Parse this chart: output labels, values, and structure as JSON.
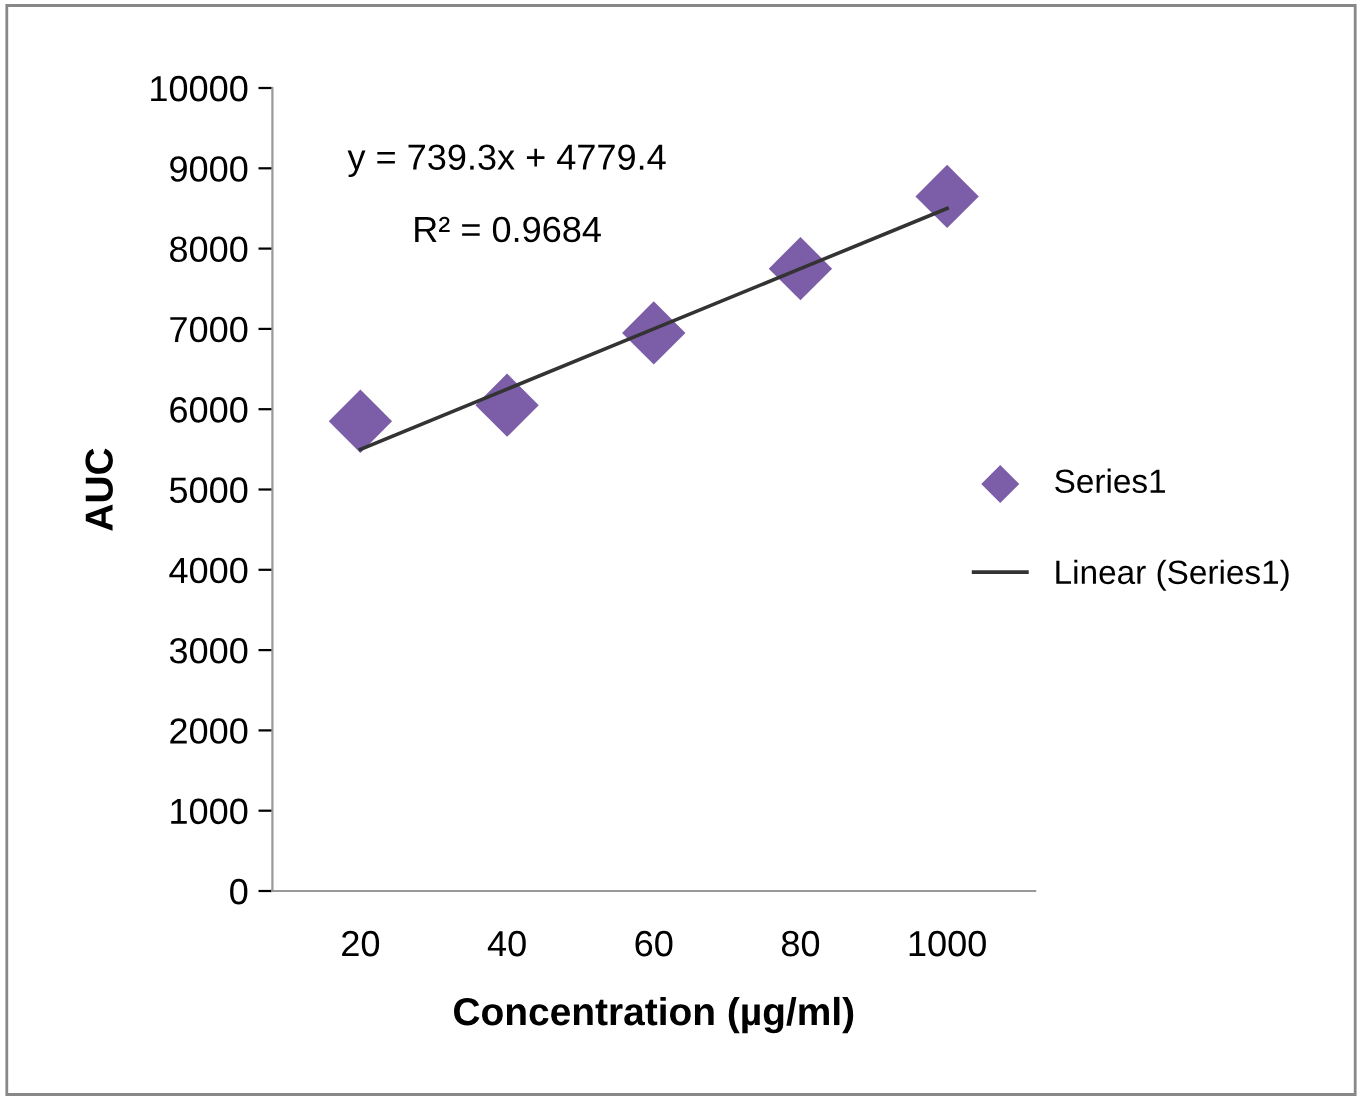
{
  "chart_data": {
    "type": "scatter",
    "xlabel": "Concentration (µg/ml)",
    "ylabel": "AUC",
    "categories": [
      "20",
      "40",
      "60",
      "80",
      "1000"
    ],
    "series": [
      {
        "name": "Series1",
        "color": "#7b5ea7",
        "marker": "diamond",
        "values": [
          5850,
          6050,
          6950,
          7750,
          8650
        ]
      },
      {
        "name": "Linear (Series1)",
        "type": "line",
        "color": "#333333",
        "marker": "none",
        "line_style": "solid",
        "values": [
          5500,
          6250,
          7000,
          7750,
          8500
        ]
      }
    ],
    "annotations": [
      "y = 739.3x + 4779.4",
      "R² = 0.9684"
    ],
    "ylim": [
      0,
      10000
    ],
    "yticks": [
      0,
      1000,
      2000,
      3000,
      4000,
      5000,
      6000,
      7000,
      8000,
      9000,
      10000
    ],
    "grid": false,
    "legend": "right"
  }
}
